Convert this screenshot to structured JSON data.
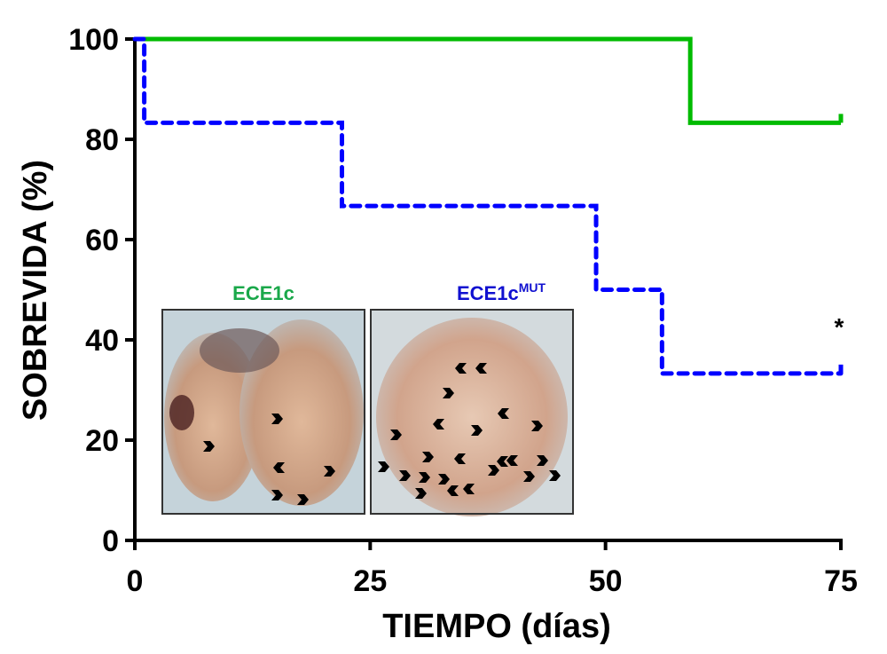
{
  "chart_data": {
    "type": "line",
    "subtype": "kaplan-meier-step",
    "xlabel": "TIEMPO (días)",
    "ylabel": "SOBREVIDA (%)",
    "xlim": [
      0,
      75
    ],
    "ylim": [
      0,
      100
    ],
    "xticks": [
      "0",
      "25",
      "50",
      "75"
    ],
    "yticks": [
      "0",
      "20",
      "40",
      "60",
      "80",
      "100"
    ],
    "xtick_values": [
      0,
      25,
      50,
      75
    ],
    "ytick_values": [
      0,
      20,
      40,
      60,
      80,
      100
    ],
    "grid": false,
    "series": [
      {
        "name": "ECE1c",
        "color": "#00bb00",
        "style": "solid",
        "steps": [
          [
            0,
            100
          ],
          [
            59,
            83.3
          ],
          [
            75,
            83.3
          ]
        ],
        "censored_end": true
      },
      {
        "name": "ECE1cMUT",
        "color": "#0000ff",
        "style": "dashed",
        "steps": [
          [
            0,
            100
          ],
          [
            1,
            83.3
          ],
          [
            22,
            66.7
          ],
          [
            49,
            50
          ],
          [
            56,
            33.3
          ],
          [
            75,
            33.3
          ]
        ],
        "censored_end": true
      }
    ],
    "annotation": "*",
    "inset": {
      "left_label": "ECE1c",
      "right_label_base": "ECE1c",
      "right_label_sup": "MUT",
      "left_color": "#1aa84a",
      "right_color": "#1010d0"
    }
  }
}
